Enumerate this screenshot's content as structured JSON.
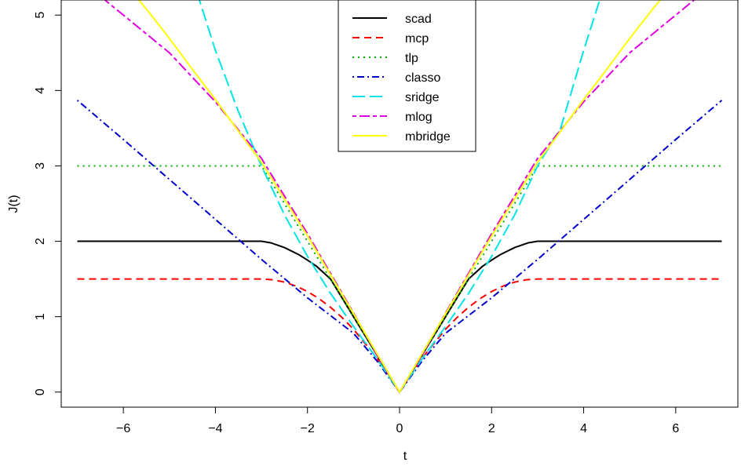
{
  "chart_data": {
    "type": "line",
    "xlabel": "t",
    "ylabel": "J(t)",
    "xlim": [
      -7.35,
      7.35
    ],
    "ylim": [
      -0.2,
      5.2
    ],
    "x_ticks": [
      -6,
      -4,
      -2,
      0,
      2,
      4,
      6
    ],
    "x_tick_labels": [
      "−6",
      "−4",
      "−2",
      "0",
      "2",
      "4",
      "6"
    ],
    "y_ticks": [
      0,
      1,
      2,
      3,
      4,
      5
    ],
    "y_tick_labels": [
      "0",
      "1",
      "2",
      "3",
      "4",
      "5"
    ],
    "grid": false,
    "legend_position": "top-center",
    "series": [
      {
        "name": "scad",
        "color": "#000000",
        "dash": "solid",
        "x": [
          -7,
          -6,
          -5,
          -4,
          -3,
          -2.8,
          -2.5,
          -2.2,
          -2.0,
          -1.8,
          -1.5,
          -1.2,
          -1.0,
          -0.5,
          0,
          0.5,
          1.0,
          1.2,
          1.5,
          1.8,
          2.0,
          2.2,
          2.5,
          2.8,
          3,
          4,
          5,
          6,
          7
        ],
        "y": [
          2.0,
          2.0,
          2.0,
          2.0,
          2.0,
          1.98,
          1.9167,
          1.8267,
          1.75,
          1.6667,
          1.5,
          1.2,
          1.0,
          0.5,
          0,
          0.5,
          1.0,
          1.2,
          1.5,
          1.6667,
          1.75,
          1.8267,
          1.9167,
          1.98,
          2.0,
          2.0,
          2.0,
          2.0,
          2.0
        ]
      },
      {
        "name": "mcp",
        "color": "#ff0000",
        "dash": "dashed",
        "x": [
          -7,
          -6,
          -5,
          -4,
          -3,
          -2.75,
          -2.5,
          -2.25,
          -2.0,
          -1.75,
          -1.5,
          -1.25,
          -1.0,
          -0.5,
          0,
          0.5,
          1.0,
          1.25,
          1.5,
          1.75,
          2.0,
          2.25,
          2.5,
          2.75,
          3,
          4,
          5,
          6,
          7
        ],
        "y": [
          1.5,
          1.5,
          1.5,
          1.5,
          1.5,
          1.4896,
          1.4583,
          1.4063,
          1.3333,
          1.2396,
          1.125,
          0.9896,
          0.8333,
          0.4583,
          0,
          0.4583,
          0.8333,
          0.9896,
          1.125,
          1.2396,
          1.3333,
          1.4063,
          1.4583,
          1.4896,
          1.5,
          1.5,
          1.5,
          1.5,
          1.5
        ]
      },
      {
        "name": "tlp",
        "color": "#00b000",
        "dash": "dotted",
        "x": [
          -7,
          -3,
          -2,
          -1,
          0,
          1,
          2,
          3,
          7
        ],
        "y": [
          3,
          3,
          2,
          1,
          0,
          1,
          2,
          3,
          3
        ]
      },
      {
        "name": "classo",
        "color": "#0000cc",
        "dash": "dotdash",
        "x": [
          -7,
          -6,
          -5,
          -4,
          -3,
          -2,
          -1,
          -0.5,
          0,
          0.5,
          1,
          2,
          3,
          4,
          5,
          6,
          7
        ],
        "y": [
          3.87,
          3.35,
          2.82,
          2.29,
          1.76,
          1.25,
          0.78,
          0.42,
          0,
          0.42,
          0.78,
          1.25,
          1.76,
          2.29,
          2.82,
          3.35,
          3.87
        ]
      },
      {
        "name": "sridge",
        "color": "#00e5e5",
        "dash": "longdash",
        "x": [
          -4.4,
          -4.0,
          -3.5,
          -3.0,
          -2.5,
          -2.0,
          -1.5,
          -1.0,
          -0.5,
          0,
          0.5,
          1.0,
          1.5,
          2.0,
          2.5,
          3.0,
          3.5,
          4.0,
          4.4
        ],
        "y": [
          5.3,
          4.53,
          3.72,
          3.0,
          2.35,
          1.8,
          1.31,
          0.87,
          0.45,
          0,
          0.45,
          0.87,
          1.31,
          1.8,
          2.35,
          3.0,
          3.5,
          4.53,
          5.3
        ]
      },
      {
        "name": "mlog",
        "color": "#e000e0",
        "dash": "twodash",
        "x": [
          -6.6,
          -6.0,
          -5.0,
          -4.0,
          -3.0,
          -2.0,
          -1.0,
          -0.5,
          0,
          0.5,
          1.0,
          2.0,
          3.0,
          4.0,
          5.0,
          6.0,
          6.6
        ],
        "y": [
          5.3,
          5.0,
          4.5,
          3.85,
          3.1,
          2.1,
          1.05,
          0.5,
          0,
          0.5,
          1.05,
          2.1,
          3.1,
          3.85,
          4.5,
          5.0,
          5.3
        ]
      },
      {
        "name": "mbridge",
        "color": "#ffff00",
        "dash": "solid",
        "x": [
          -5.8,
          -5.5,
          -5.0,
          -4.5,
          -4.0,
          -3.5,
          -3.0,
          -2.0,
          -1.0,
          -0.5,
          0,
          0.5,
          1.0,
          2.0,
          3.0,
          3.5,
          4.0,
          4.5,
          5.0,
          5.5,
          5.8
        ],
        "y": [
          5.3,
          5.08,
          4.69,
          4.28,
          3.88,
          3.46,
          3.05,
          2.07,
          1.04,
          0.52,
          0,
          0.52,
          1.04,
          2.07,
          3.05,
          3.46,
          3.88,
          4.28,
          4.69,
          5.08,
          5.3
        ]
      }
    ]
  }
}
